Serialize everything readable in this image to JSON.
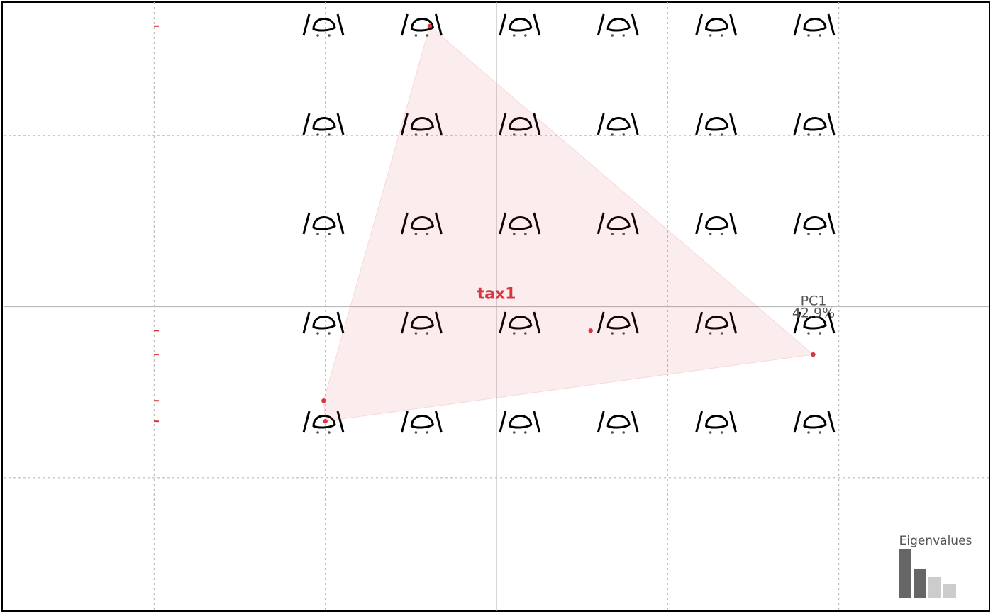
{
  "chart_data": {
    "type": "scatter",
    "x": [
      -0.39,
      0.55,
      1.85,
      -1.01,
      -1.0
    ],
    "series": [
      {
        "name": "tax1",
        "color": "#d7373f",
        "values": [
          1.64,
          -0.14,
          -0.28,
          -0.55,
          -0.67
        ]
      }
    ],
    "xlim": [
      -2.88,
      2.88
    ],
    "ylim": [
      -1.78,
      1.78
    ],
    "xticks": [
      -2,
      -1,
      0,
      1,
      2
    ],
    "yticks": [
      -1,
      0,
      1
    ],
    "grid": true,
    "x_axis_label": "PC1",
    "x_axis_variance": "42.9%",
    "eigenvalues": {
      "title": "Eigenvalues",
      "values": [
        42.9,
        25.9,
        18.3,
        12.6
      ],
      "colors": [
        "#666666",
        "#666666",
        "#cccccc",
        "#cccccc"
      ]
    }
  }
}
